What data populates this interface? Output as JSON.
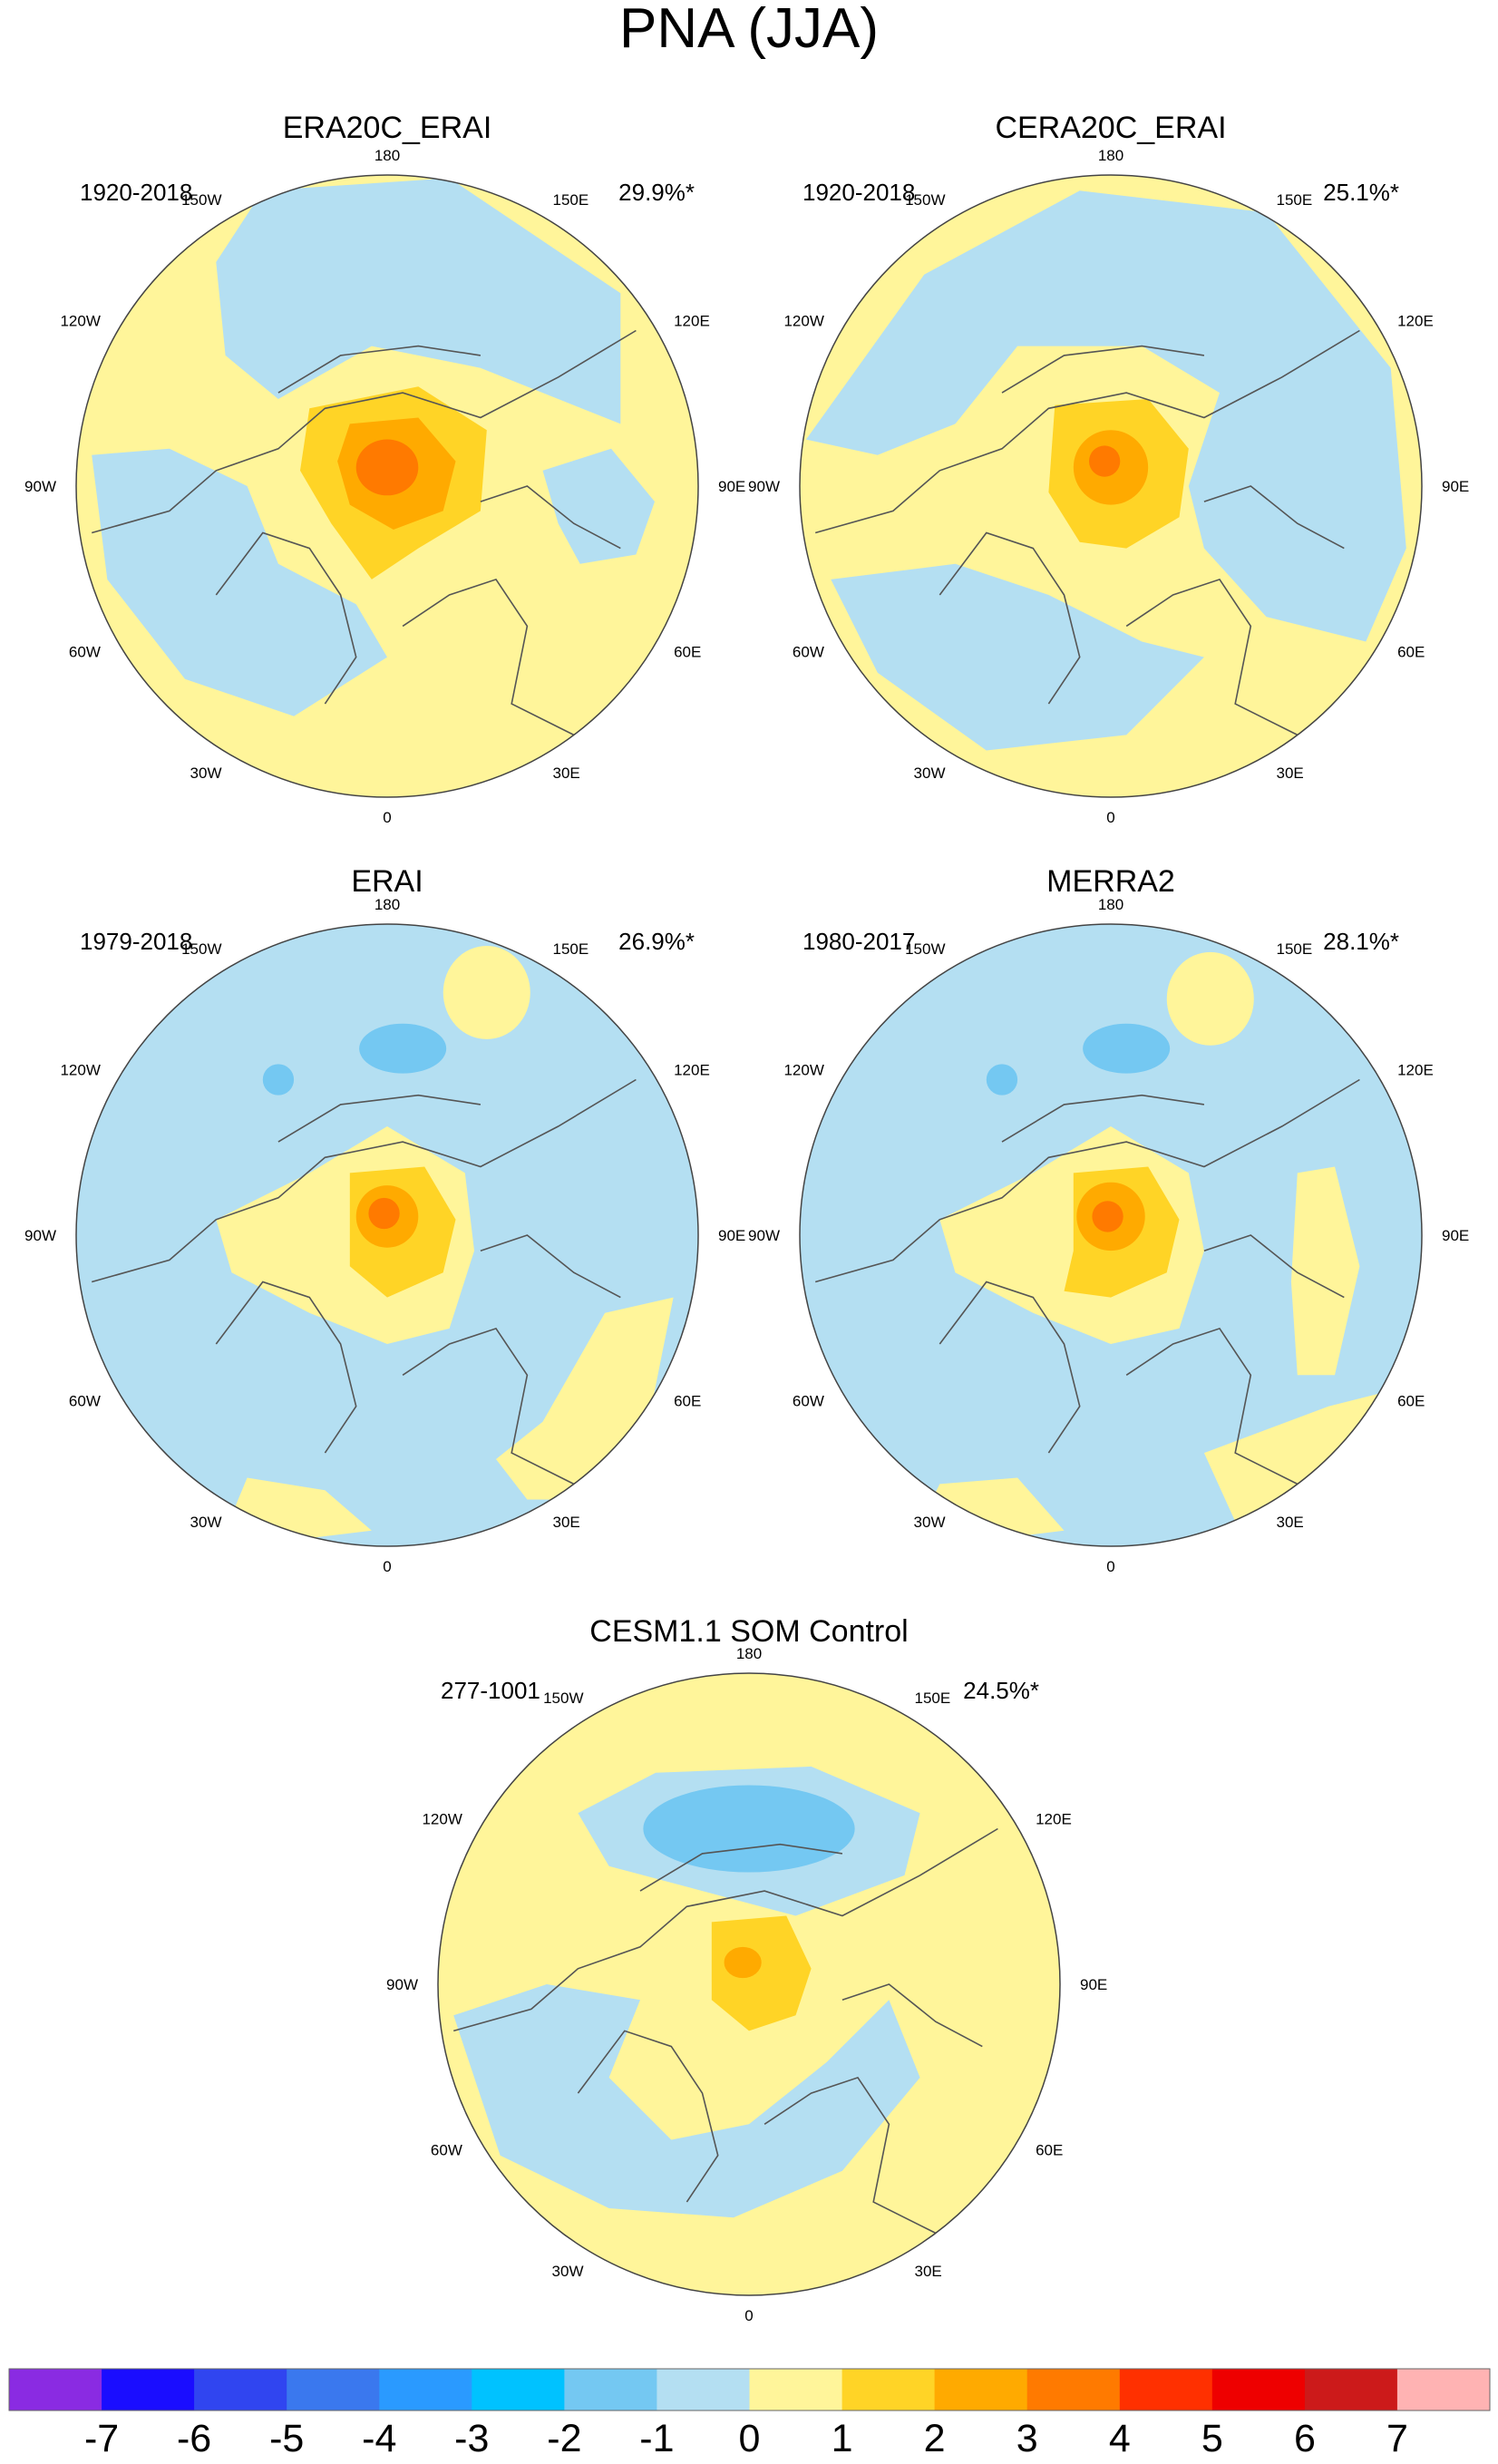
{
  "chart_data": {
    "type": "polar-contour-map",
    "title": "PNA (JJA)",
    "projection": "north polar stereographic",
    "longitude_labels": [
      "180",
      "150E",
      "120E",
      "90E",
      "60E",
      "30E",
      "0",
      "30W",
      "60W",
      "90W",
      "120W",
      "150W"
    ],
    "panels": [
      {
        "name": "ERA20C_ERAI",
        "period": "1920-2018",
        "variance_explained": "29.9%*",
        "center_max_level": 4,
        "features": [
          {
            "sign": "positive",
            "level": 1,
            "region": "Eurasia, Atlantic margin and North American coasts"
          },
          {
            "sign": "positive",
            "level": 2,
            "region": "Arctic / Greenland"
          },
          {
            "sign": "positive",
            "level": 3,
            "region": "Arctic / Greenland"
          },
          {
            "sign": "positive",
            "level": 4,
            "region": "Arctic center"
          },
          {
            "sign": "negative",
            "level": -1,
            "region": "North Pacific and North Atlantic"
          }
        ]
      },
      {
        "name": "CERA20C_ERAI",
        "period": "1920-2018",
        "variance_explained": "25.1%*",
        "center_max_level": 4,
        "features": [
          {
            "sign": "positive",
            "level": 1,
            "region": "Arctic ring, North America, Europe"
          },
          {
            "sign": "positive",
            "level": 2,
            "region": "Arctic"
          },
          {
            "sign": "positive",
            "level": 3,
            "region": "Arctic"
          },
          {
            "sign": "positive",
            "level": 4,
            "region": "Arctic center"
          },
          {
            "sign": "negative",
            "level": -1,
            "region": "Pacific, Atlantic, Eurasia"
          }
        ]
      },
      {
        "name": "ERAI",
        "period": "1979-2018",
        "variance_explained": "26.9%*",
        "center_max_level": 4,
        "features": [
          {
            "sign": "positive",
            "level": 1,
            "region": "Arctic, East Asia, North Pacific cell"
          },
          {
            "sign": "positive",
            "level": 2,
            "region": "Arctic"
          },
          {
            "sign": "positive",
            "level": 3,
            "region": "Arctic"
          },
          {
            "sign": "positive",
            "level": 4,
            "region": "Arctic center"
          },
          {
            "sign": "negative",
            "level": -1,
            "region": "Pacific, Atlantic, Eurasia"
          },
          {
            "sign": "negative",
            "level": -2,
            "region": "North Pacific"
          }
        ]
      },
      {
        "name": "MERRA2",
        "period": "1980-2017",
        "variance_explained": "28.1%*",
        "center_max_level": 4,
        "features": [
          {
            "sign": "positive",
            "level": 1,
            "region": "Arctic, Siberia, North Pacific cell"
          },
          {
            "sign": "positive",
            "level": 2,
            "region": "Arctic"
          },
          {
            "sign": "positive",
            "level": 3,
            "region": "Arctic"
          },
          {
            "sign": "positive",
            "level": 4,
            "region": "Arctic center"
          },
          {
            "sign": "negative",
            "level": -1,
            "region": "Pacific, Atlantic, Eurasia"
          },
          {
            "sign": "negative",
            "level": -2,
            "region": "North Pacific"
          }
        ]
      },
      {
        "name": "CESM1.1 SOM Control",
        "period": "277-1001",
        "variance_explained": "24.5%*",
        "center_max_level": 3,
        "features": [
          {
            "sign": "positive",
            "level": 1,
            "region": "Eurasia, Atlantic, Pacific rim"
          },
          {
            "sign": "positive",
            "level": 2,
            "region": "Arctic"
          },
          {
            "sign": "positive",
            "level": 3,
            "region": "Arctic center"
          },
          {
            "sign": "negative",
            "level": -1,
            "region": "Central Pacific, Canada, North Atlantic"
          },
          {
            "sign": "negative",
            "level": -2,
            "region": "North Pacific"
          }
        ]
      }
    ],
    "colorbar": {
      "labels": [
        "-7",
        "-6",
        "-5",
        "-4",
        "-3",
        "-2",
        "-1",
        "0",
        "1",
        "2",
        "3",
        "4",
        "5",
        "6",
        "7"
      ],
      "colors": [
        "#8a2be2",
        "#1a0dff",
        "#3045f0",
        "#3a78ee",
        "#2a9aff",
        "#00c2ff",
        "#74c8f2",
        "#b4dff2",
        "#fff59a",
        "#ffd426",
        "#ffaa00",
        "#ff7a00",
        "#ff3000",
        "#ee0000",
        "#cc1a1a",
        "#ffb3b3"
      ]
    },
    "colors": {
      "neg1": "#b4dff2",
      "neg2": "#74c8f2",
      "pos1": "#fff59a",
      "pos2": "#ffd426",
      "pos3": "#ffaa00",
      "pos4": "#ff7a00",
      "coast": "#555555"
    }
  }
}
